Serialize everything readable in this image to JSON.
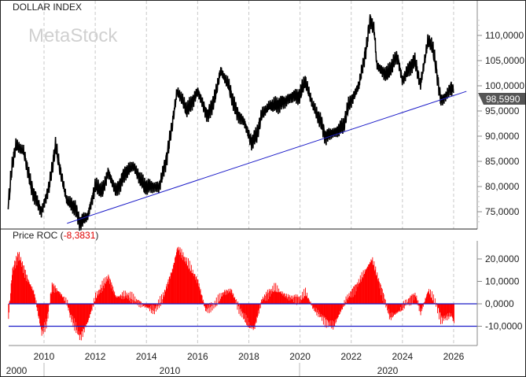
{
  "chart_data": [
    {
      "type": "line",
      "title": "DOLLAR INDEX",
      "watermark": "MetaStock",
      "last_value_label": "98,5990",
      "ylim": [
        72,
        115
      ],
      "y_ticks": [
        "110,0000",
        "105,0000",
        "100,0000",
        "95,0000",
        "90,0000",
        "85,0000",
        "80,0000",
        "75,0000"
      ],
      "y_tick_values": [
        110,
        105,
        100,
        95,
        90,
        85,
        80,
        75
      ],
      "grid": "vertical dashed",
      "colors": {
        "price": "#000000",
        "trendline": "#1c1cc8",
        "label_bg": "#555555"
      },
      "series": [
        {
          "x": [
            2008.6,
            2008.75,
            2008.9,
            2009.2,
            2009.5,
            2009.9,
            2010.2,
            2010.45,
            2010.6,
            2010.9,
            2011.2,
            2011.4,
            2011.7,
            2012.0,
            2012.3,
            2012.5,
            2012.8,
            2013.2,
            2013.5,
            2013.9,
            2014.2,
            2014.5,
            2014.8,
            2015.0,
            2015.2,
            2015.4,
            2015.6,
            2016.0,
            2016.4,
            2016.7,
            2016.9,
            2017.2,
            2017.5,
            2017.8,
            2018.1,
            2018.3,
            2018.5,
            2018.8,
            2019.0,
            2019.4,
            2019.7,
            2020.0,
            2020.2,
            2020.5,
            2020.8,
            2021.0,
            2021.4,
            2021.7,
            2021.9,
            2022.1,
            2022.3,
            2022.6,
            2022.75,
            2022.9,
            2023.0,
            2023.4,
            2023.8,
            2024.0,
            2024.3,
            2024.5,
            2024.7,
            2025.0,
            2025.15,
            2025.3,
            2025.5,
            2025.7,
            2025.9,
            2026.0
          ],
          "y": [
            76,
            84,
            88,
            87,
            80,
            75,
            80,
            88,
            84,
            77,
            76,
            73,
            74,
            80,
            79,
            83,
            79,
            83,
            84,
            80,
            80,
            80,
            86,
            92,
            99,
            97,
            95,
            99,
            94,
            98,
            103,
            100,
            95,
            93,
            89,
            90,
            94,
            96,
            96,
            97,
            98,
            98,
            101,
            96,
            93,
            90,
            91,
            92,
            96,
            98,
            100,
            108,
            113.5,
            111,
            104,
            102,
            106,
            101,
            104,
            105,
            100,
            109,
            108,
            104,
            97,
            98,
            100,
            98.599
          ]
        }
      ],
      "trendline": {
        "x": [
          2010.9,
          2026.5
        ],
        "y": [
          72.7,
          98.9
        ]
      }
    },
    {
      "type": "bar",
      "title": "Price ROC",
      "title_value": "-8,3831",
      "ylim": [
        -18,
        28
      ],
      "y_ticks": [
        "20,0000",
        "10,0000",
        "0,0000",
        "-10,0000"
      ],
      "y_tick_values": [
        20,
        10,
        0,
        -10
      ],
      "reference_lines": [
        0,
        -10
      ],
      "colors": {
        "bars": "#ff0000",
        "reference_lines": "#1c1cc8",
        "title_value": "#e00000"
      },
      "series": [
        {
          "x": [
            2008.6,
            2008.75,
            2009.0,
            2009.3,
            2009.6,
            2009.9,
            2010.1,
            2010.3,
            2010.6,
            2010.9,
            2011.0,
            2011.4,
            2011.7,
            2012.0,
            2012.5,
            2012.8,
            2013.2,
            2013.5,
            2013.9,
            2014.3,
            2014.6,
            2015.0,
            2015.2,
            2015.6,
            2016.0,
            2016.3,
            2016.7,
            2017.0,
            2017.3,
            2017.6,
            2018.0,
            2018.2,
            2018.5,
            2019.0,
            2019.5,
            2020.0,
            2020.2,
            2020.5,
            2021.0,
            2021.3,
            2021.8,
            2022.2,
            2022.8,
            2023.2,
            2023.5,
            2023.9,
            2024.1,
            2024.5,
            2024.7,
            2025.0,
            2025.3,
            2025.5,
            2025.9,
            2026.0
          ],
          "y": [
            -6,
            15,
            22,
            12,
            5,
            -13,
            -8,
            8,
            5,
            0,
            -5,
            -15,
            -8,
            3,
            12,
            3,
            4,
            2,
            -1,
            -3,
            2,
            15,
            25,
            18,
            10,
            -3,
            0,
            5,
            6,
            -2,
            -10,
            -11,
            2,
            7,
            3,
            2,
            5,
            -2,
            -8,
            -10,
            2,
            8,
            20,
            5,
            -6,
            -3,
            0,
            4,
            -4,
            6,
            0,
            -7,
            -5,
            -8.38
          ]
        }
      ]
    }
  ],
  "x_axis": {
    "year_labels": [
      "2010",
      "2012",
      "2014",
      "2016",
      "2018",
      "2020",
      "2022",
      "2024",
      "2026"
    ],
    "year_values": [
      2010,
      2012,
      2014,
      2016,
      2018,
      2020,
      2022,
      2024,
      2026
    ],
    "decade_labels": [
      "2000",
      "2010",
      "2020"
    ]
  }
}
